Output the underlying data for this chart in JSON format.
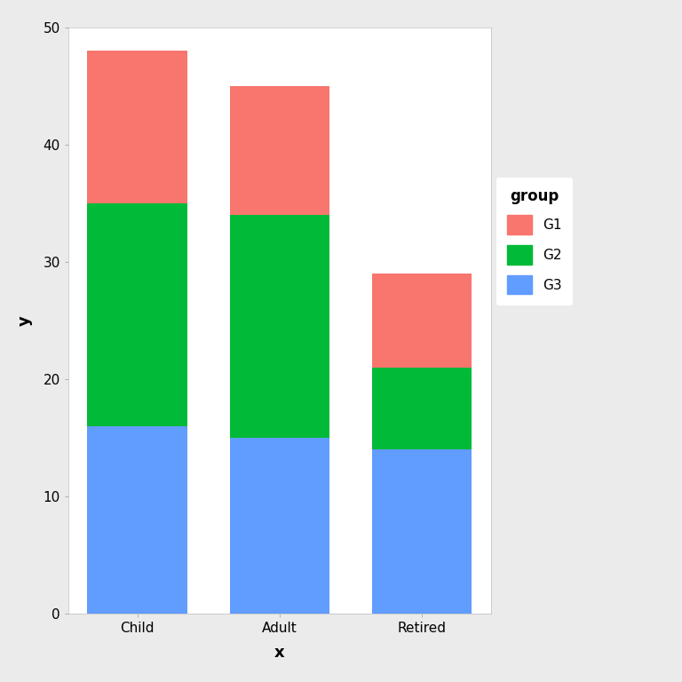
{
  "categories": [
    "Child",
    "Adult",
    "Retired"
  ],
  "G3_values": [
    16,
    15,
    14
  ],
  "G2_values": [
    19,
    19,
    7
  ],
  "G1_values": [
    13,
    11,
    8
  ],
  "color_G1": "#F8766D",
  "color_G2": "#00BA38",
  "color_G3": "#619CFF",
  "xlabel": "x",
  "ylabel": "y",
  "legend_title": "group",
  "ylim": [
    0,
    50
  ],
  "yticks": [
    0,
    10,
    20,
    30,
    40,
    50
  ],
  "outer_bg_color": "#EBEBEB",
  "panel_bg_color": "#FFFFFF",
  "grid_color": "#FFFFFF",
  "axis_label_fontsize": 13,
  "tick_fontsize": 11,
  "legend_fontsize": 11,
  "legend_title_fontsize": 12,
  "bar_width": 0.7
}
